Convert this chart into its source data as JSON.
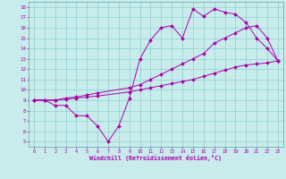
{
  "xlabel": "Windchill (Refroidissement éolien,°C)",
  "background_color": "#c8ecec",
  "line_color": "#aa00aa",
  "xlim": [
    -0.5,
    23.5
  ],
  "ylim": [
    4.5,
    18.5
  ],
  "xticks": [
    0,
    1,
    2,
    3,
    4,
    5,
    6,
    7,
    8,
    9,
    10,
    11,
    12,
    13,
    14,
    15,
    16,
    17,
    18,
    19,
    20,
    21,
    22,
    23
  ],
  "yticks": [
    5,
    6,
    7,
    8,
    9,
    10,
    11,
    12,
    13,
    14,
    15,
    16,
    17,
    18
  ],
  "line1_x": [
    0,
    1,
    2,
    3,
    4,
    5,
    6,
    7,
    8,
    9,
    10,
    11,
    12,
    13,
    14,
    15,
    16,
    17,
    18,
    19,
    20,
    21,
    22,
    23
  ],
  "line1_y": [
    9,
    9,
    8.5,
    8.5,
    7.5,
    7.5,
    6.5,
    5,
    6.5,
    9.2,
    13,
    14.8,
    16,
    16.2,
    15,
    17.8,
    17.1,
    17.8,
    17.5,
    17.3,
    16.5,
    15.0,
    14.0,
    12.8
  ],
  "line2_x": [
    0,
    1,
    2,
    3,
    4,
    5,
    6,
    9,
    10,
    11,
    12,
    13,
    14,
    15,
    16,
    17,
    18,
    19,
    20,
    21,
    22,
    23
  ],
  "line2_y": [
    9,
    9,
    9,
    9.2,
    9.3,
    9.5,
    9.7,
    10.2,
    10.5,
    11.0,
    11.5,
    12.0,
    12.5,
    13.0,
    13.5,
    14.5,
    15.0,
    15.5,
    16.0,
    16.2,
    15.0,
    12.8
  ],
  "line3_x": [
    0,
    1,
    2,
    3,
    4,
    5,
    6,
    9,
    10,
    11,
    12,
    13,
    14,
    15,
    16,
    17,
    18,
    19,
    20,
    21,
    22,
    23
  ],
  "line3_y": [
    9,
    9,
    9,
    9.1,
    9.2,
    9.3,
    9.4,
    9.8,
    10.0,
    10.2,
    10.4,
    10.6,
    10.8,
    11.0,
    11.3,
    11.6,
    11.9,
    12.2,
    12.4,
    12.5,
    12.6,
    12.8
  ],
  "grid_color": "#80c8c8",
  "spine_color": "#60a0a0"
}
